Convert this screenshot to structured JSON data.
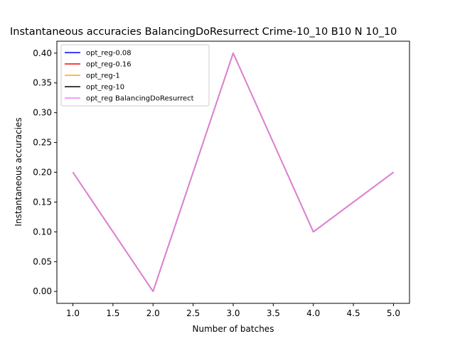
{
  "chart_data": {
    "type": "line",
    "title": "Instantaneous accuracies BalancingDoResurrect Crime-10_10 B10 N 10_10",
    "xlabel": "Number of batches",
    "ylabel": "Instantaneous accuracies",
    "x": [
      1,
      2,
      3,
      4,
      5
    ],
    "xlim": [
      0.8,
      5.2
    ],
    "ylim": [
      -0.02,
      0.42
    ],
    "xticks": [
      "1.0",
      "1.5",
      "2.0",
      "2.5",
      "3.0",
      "3.5",
      "4.0",
      "4.5",
      "5.0"
    ],
    "yticks": [
      "0.00",
      "0.05",
      "0.10",
      "0.15",
      "0.20",
      "0.25",
      "0.30",
      "0.35",
      "0.40"
    ],
    "grid": false,
    "legend_position": "top-left",
    "series": [
      {
        "name": "opt_reg-0.08",
        "color": "#0000ff",
        "values": [
          0.2,
          0.0,
          0.4,
          0.1,
          0.2
        ]
      },
      {
        "name": "opt_reg-0.16",
        "color": "#ff0000",
        "values": [
          0.2,
          0.0,
          0.4,
          0.1,
          0.2
        ]
      },
      {
        "name": "opt_reg-1",
        "color": "#ffa500",
        "values": [
          0.2,
          0.0,
          0.4,
          0.1,
          0.2
        ]
      },
      {
        "name": "opt_reg-10",
        "color": "#000000",
        "values": [
          0.2,
          0.0,
          0.4,
          0.1,
          0.2
        ]
      },
      {
        "name": "opt_reg BalancingDoResurrect",
        "color": "#ee82ee",
        "values": [
          0.2,
          0.0,
          0.4,
          0.1,
          0.2
        ]
      }
    ]
  }
}
